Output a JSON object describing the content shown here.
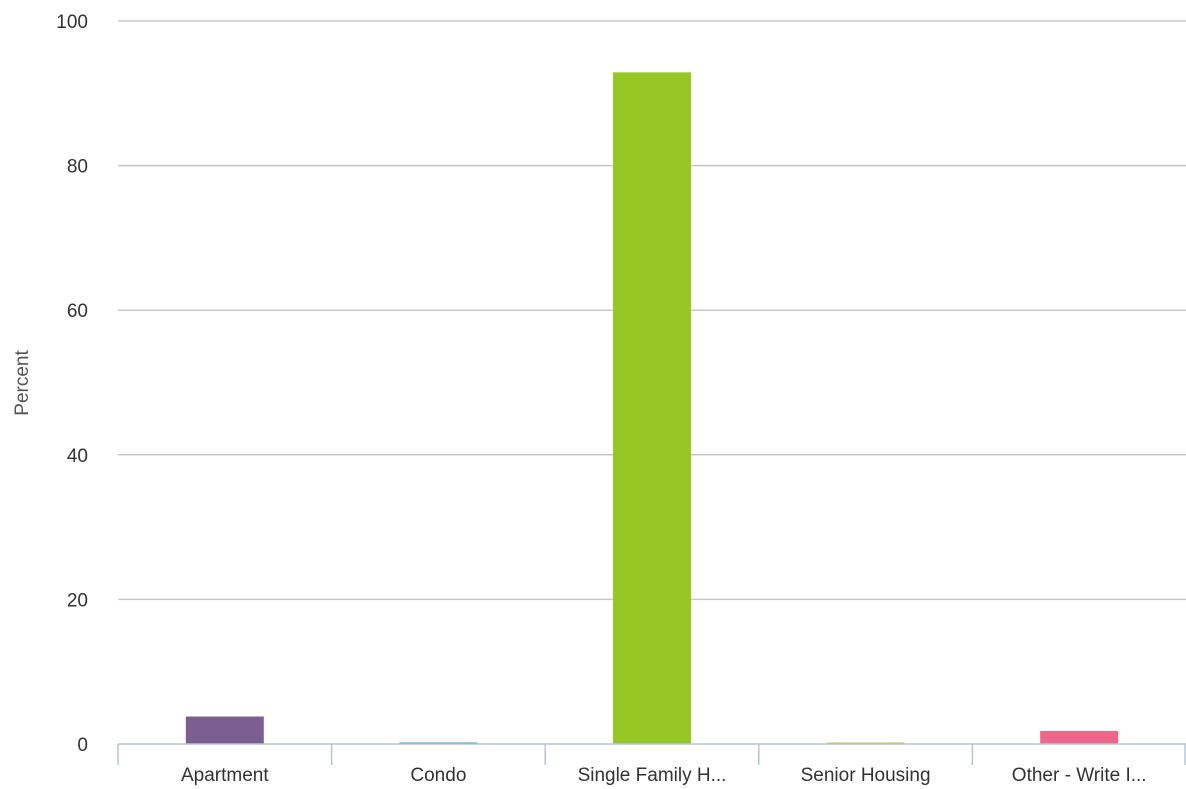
{
  "chart_data": {
    "type": "bar",
    "title": "",
    "xlabel": "",
    "ylabel": "Percent",
    "ylim": [
      0,
      100
    ],
    "yticks": [
      0,
      20,
      40,
      60,
      80,
      100
    ],
    "grid": true,
    "legend": "none",
    "categories": [
      "Apartment",
      "Condo",
      "Single Family H...",
      "Senior Housing",
      "Other - Write I..."
    ],
    "values": [
      3.8,
      0.2,
      92.9,
      0.2,
      1.8
    ],
    "colors": [
      "#7b5f92",
      "#3a9fc0",
      "#96c725",
      "#e3b92b",
      "#ee6688"
    ]
  }
}
